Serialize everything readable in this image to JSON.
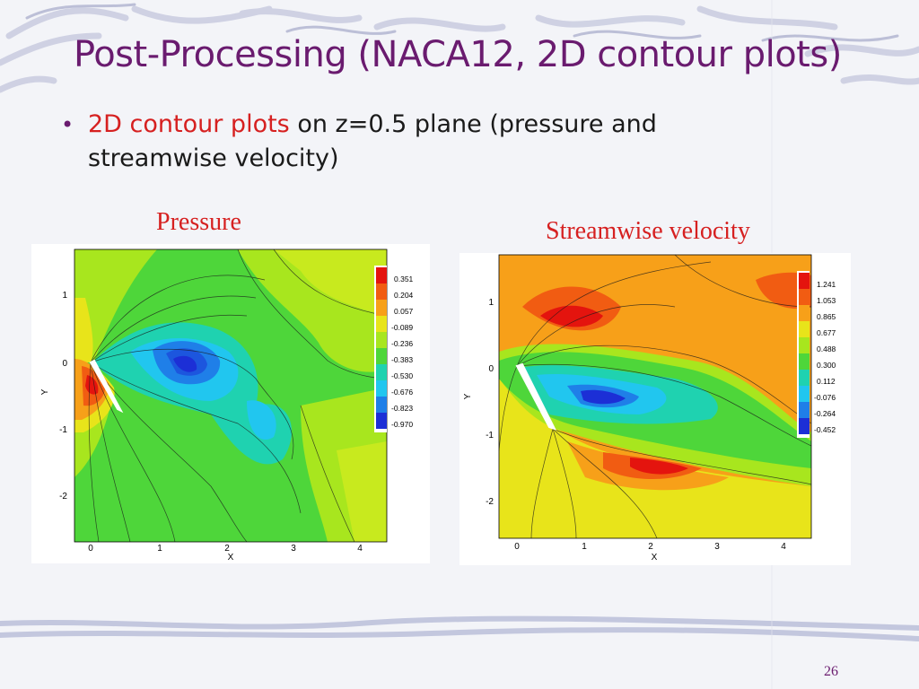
{
  "slide": {
    "title": "Post-Processing (NACA12, 2D contour plots)",
    "bullet_highlight": "2D contour plots",
    "bullet_rest": " on z=0.5 plane (pressure and streamwise velocity)",
    "slide_number": "26"
  },
  "plots": [
    {
      "label": "Pressure",
      "x_axis_label": "X",
      "y_axis_label": "Y",
      "x_ticks": [
        "0",
        "1",
        "2",
        "3",
        "4"
      ],
      "y_ticks": [
        "1",
        "0",
        "-1",
        "-2"
      ],
      "legend_levels": [
        "0.351",
        "0.204",
        "0.057",
        "-0.089",
        "-0.236",
        "-0.383",
        "-0.530",
        "-0.676",
        "-0.823",
        "-0.970"
      ],
      "legend_colors": [
        "#e4140e",
        "#f15c12",
        "#f7a019",
        "#e8e41a",
        "#a8e61e",
        "#4ed63a",
        "#1fd2b0",
        "#21c6ef",
        "#1f7fe8",
        "#1c2fd6"
      ]
    },
    {
      "label": "Streamwise velocity",
      "x_axis_label": "X",
      "y_axis_label": "Y",
      "x_ticks": [
        "0",
        "1",
        "2",
        "3",
        "4"
      ],
      "y_ticks": [
        "1",
        "0",
        "-1",
        "-2"
      ],
      "legend_levels": [
        "1.241",
        "1.053",
        "0.865",
        "0.677",
        "0.488",
        "0.300",
        "0.112",
        "-0.076",
        "-0.264",
        "-0.452"
      ],
      "legend_colors": [
        "#e4140e",
        "#f15c12",
        "#f7a019",
        "#e8e41a",
        "#a8e61e",
        "#4ed63a",
        "#1fd2b0",
        "#21c6ef",
        "#1f7fe8",
        "#1c2fd6"
      ]
    }
  ]
}
